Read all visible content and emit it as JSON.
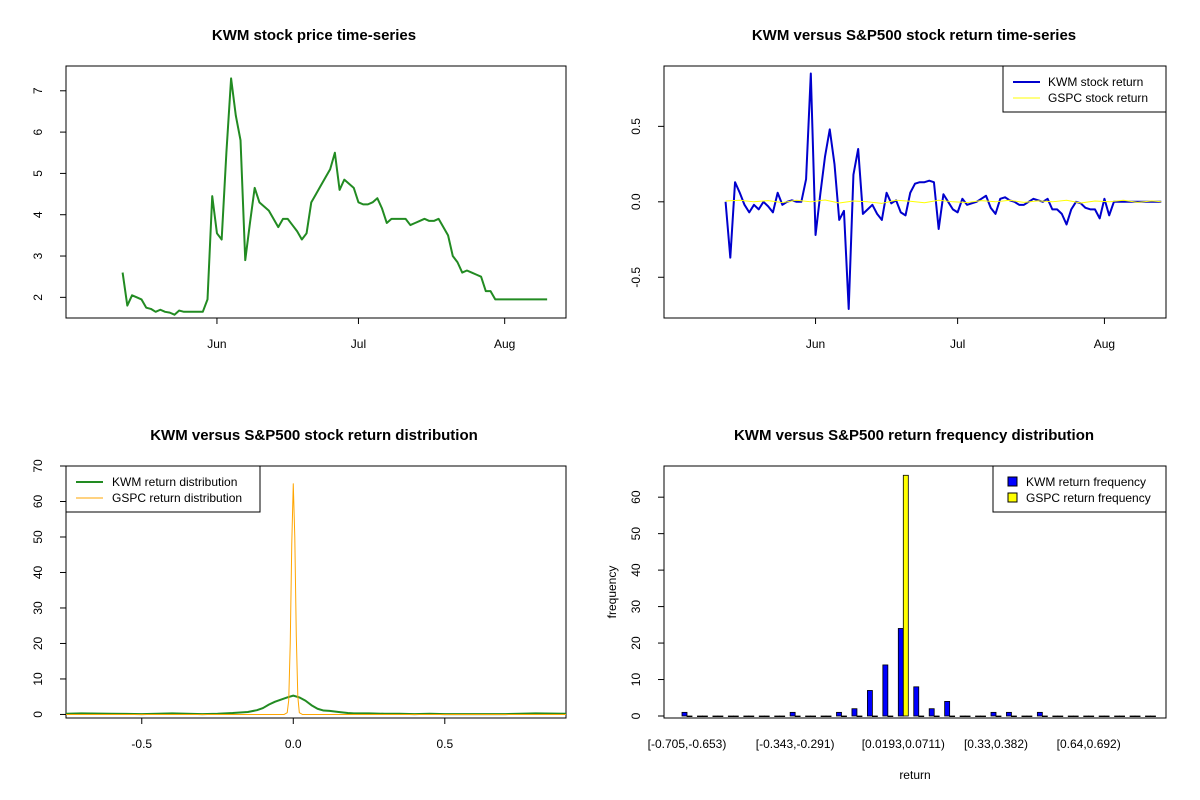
{
  "chart_data": [
    {
      "id": "c1",
      "type": "line",
      "title": "KWM stock price time-series",
      "xlabel": "",
      "ylabel": "",
      "x_tick_labels": [
        "Jun",
        "Jul",
        "Aug"
      ],
      "x_tick_days": [
        32,
        62,
        93
      ],
      "xlim": [
        0,
        106
      ],
      "ylim": [
        1.5,
        7.6
      ],
      "y_ticks": [
        2,
        3,
        4,
        5,
        6,
        7
      ],
      "series": [
        {
          "name": "KWM",
          "color": "#228B22",
          "days": [
            12,
            13,
            14,
            15,
            16,
            17,
            18,
            19,
            20,
            21,
            22,
            23,
            24,
            25,
            26,
            27,
            28,
            29,
            30,
            31,
            32,
            33,
            34,
            35,
            36,
            37,
            38,
            39,
            40,
            41,
            42,
            43,
            44,
            45,
            46,
            47,
            48,
            49,
            50,
            51,
            52,
            53,
            54,
            55,
            56,
            57,
            58,
            59,
            60,
            61,
            62,
            63,
            64,
            65,
            66,
            67,
            68,
            69,
            70,
            71,
            72,
            73,
            74,
            75,
            76,
            77,
            78,
            79,
            80,
            81,
            82,
            83,
            84,
            85,
            86,
            87,
            88,
            89,
            90,
            91,
            92,
            93,
            94,
            95,
            96,
            97,
            98,
            99,
            100,
            101,
            102
          ],
          "values": [
            2.6,
            1.8,
            2.05,
            2.0,
            1.95,
            1.75,
            1.72,
            1.65,
            1.7,
            1.65,
            1.63,
            1.58,
            1.68,
            1.65,
            1.65,
            1.65,
            1.65,
            1.65,
            1.95,
            4.45,
            3.55,
            3.4,
            5.5,
            7.3,
            6.4,
            5.8,
            2.9,
            3.8,
            4.65,
            4.3,
            4.2,
            4.1,
            3.9,
            3.7,
            3.9,
            3.9,
            3.75,
            3.6,
            3.4,
            3.55,
            4.3,
            4.5,
            4.7,
            4.9,
            5.1,
            5.5,
            4.6,
            4.85,
            4.75,
            4.65,
            4.3,
            4.25,
            4.25,
            4.3,
            4.4,
            4.15,
            3.8,
            3.9,
            3.9,
            3.9,
            3.9,
            3.75,
            3.8,
            3.85,
            3.9,
            3.85,
            3.85,
            3.9,
            3.7,
            3.5,
            3.0,
            2.85,
            2.6,
            2.65,
            2.6,
            2.55,
            2.5,
            2.15,
            2.15,
            1.95,
            1.95,
            1.95,
            1.95,
            1.95,
            1.95,
            1.95,
            1.95,
            1.95,
            1.95,
            1.95,
            1.95
          ]
        }
      ]
    },
    {
      "id": "c2",
      "type": "line",
      "title": "KWM versus S&P500 stock return time-series",
      "xlabel": "",
      "ylabel": "",
      "x_tick_labels": [
        "Jun",
        "Jul",
        "Aug"
      ],
      "x_tick_days": [
        32,
        62,
        93
      ],
      "xlim": [
        0,
        106
      ],
      "ylim": [
        -0.77,
        0.9
      ],
      "y_ticks": [
        -0.5,
        0.0,
        0.5
      ],
      "y_tick_labels": [
        "-0.5",
        "0.0",
        "0.5"
      ],
      "legend": [
        "KWM stock return",
        "GSPC stock return"
      ],
      "series": [
        {
          "name": "KWM stock return",
          "color": "#0000CD",
          "days": [
            13,
            14,
            15,
            16,
            17,
            18,
            19,
            20,
            21,
            22,
            23,
            24,
            25,
            26,
            27,
            28,
            29,
            30,
            31,
            32,
            33,
            34,
            35,
            36,
            37,
            38,
            39,
            40,
            41,
            42,
            43,
            44,
            45,
            46,
            47,
            48,
            49,
            50,
            51,
            52,
            53,
            54,
            55,
            56,
            57,
            58,
            59,
            60,
            61,
            62,
            63,
            64,
            65,
            66,
            67,
            68,
            69,
            70,
            71,
            72,
            73,
            74,
            75,
            76,
            77,
            78,
            79,
            80,
            81,
            82,
            83,
            84,
            85,
            86,
            87,
            88,
            89,
            90,
            91,
            92,
            93,
            94,
            95,
            96,
            97,
            98,
            99,
            100,
            101,
            102,
            103,
            104,
            105
          ],
          "values": [
            0.0,
            -0.37,
            0.13,
            0.06,
            -0.02,
            -0.07,
            -0.02,
            -0.05,
            0.0,
            -0.03,
            -0.07,
            0.06,
            -0.02,
            0.0,
            0.01,
            0.0,
            0.0,
            0.15,
            0.85,
            -0.22,
            0.05,
            0.3,
            0.48,
            0.25,
            -0.12,
            -0.06,
            -0.71,
            0.18,
            0.35,
            -0.08,
            -0.05,
            -0.02,
            -0.08,
            -0.12,
            0.06,
            -0.01,
            0.01,
            -0.07,
            -0.09,
            0.06,
            0.12,
            0.13,
            0.13,
            0.14,
            0.13,
            -0.18,
            0.05,
            0.0,
            -0.05,
            -0.07,
            0.02,
            -0.02,
            -0.01,
            0.0,
            0.02,
            0.04,
            -0.04,
            -0.08,
            0.02,
            0.03,
            0.01,
            0.0,
            -0.02,
            -0.02,
            0.0,
            0.02,
            0.01,
            0.0,
            0.02,
            -0.05,
            -0.05,
            -0.08,
            -0.15,
            -0.05,
            0.0,
            -0.01,
            -0.04,
            -0.05,
            -0.05,
            -0.11,
            0.02,
            -0.09,
            0.0,
            0.0,
            0.0,
            0.0,
            0.0,
            0.0,
            0.0,
            0.0,
            0.0,
            0.0,
            0.0
          ]
        },
        {
          "name": "GSPC stock return",
          "color": "#FFFF00",
          "days": [
            13,
            16,
            19,
            22,
            25,
            28,
            31,
            34,
            37,
            40,
            43,
            46,
            49,
            52,
            55,
            58,
            61,
            64,
            67,
            70,
            73,
            76,
            79,
            82,
            85,
            88,
            91,
            94,
            97,
            100,
            103,
            105
          ],
          "values": [
            0.005,
            0.01,
            0.0,
            0.008,
            -0.005,
            0.01,
            0.0,
            0.012,
            -0.008,
            0.005,
            0.0,
            -0.01,
            0.01,
            0.004,
            -0.006,
            0.01,
            0.0,
            -0.005,
            0.008,
            0.0,
            0.01,
            -0.004,
            0.006,
            0.0,
            0.01,
            -0.008,
            0.005,
            0.0,
            0.01,
            -0.004,
            0.006,
            0.0
          ]
        }
      ]
    },
    {
      "id": "c3",
      "type": "line",
      "title": "KWM versus S&P500 stock return distribution",
      "xlabel": "",
      "ylabel": "",
      "xlim": [
        -0.75,
        0.9
      ],
      "ylim": [
        -1,
        70
      ],
      "x_ticks": [
        -0.5,
        0.0,
        0.5
      ],
      "x_tick_labels": [
        "-0.5",
        "0.0",
        "0.5"
      ],
      "y_ticks": [
        0,
        10,
        20,
        30,
        40,
        50,
        60,
        70
      ],
      "legend": [
        "KWM return distribution",
        "GSPC return distribution"
      ],
      "series": [
        {
          "name": "KWM return distribution",
          "color": "#228B22",
          "x": [
            -0.75,
            -0.7,
            -0.6,
            -0.5,
            -0.4,
            -0.35,
            -0.3,
            -0.25,
            -0.2,
            -0.15,
            -0.12,
            -0.1,
            -0.08,
            -0.06,
            -0.04,
            -0.02,
            0.0,
            0.02,
            0.04,
            0.06,
            0.08,
            0.1,
            0.12,
            0.15,
            0.18,
            0.2,
            0.25,
            0.3,
            0.35,
            0.4,
            0.45,
            0.5,
            0.6,
            0.7,
            0.8,
            0.9
          ],
          "values": [
            0.2,
            0.3,
            0.2,
            0.1,
            0.3,
            0.2,
            0.1,
            0.2,
            0.4,
            0.7,
            1.2,
            1.8,
            2.8,
            3.6,
            4.2,
            4.8,
            5.3,
            4.8,
            3.9,
            2.6,
            1.6,
            1.1,
            1.0,
            0.7,
            0.4,
            0.3,
            0.3,
            0.2,
            0.2,
            0.1,
            0.2,
            0.1,
            0.1,
            0.1,
            0.3,
            0.2
          ]
        },
        {
          "name": "GSPC return distribution",
          "color": "#FFA500",
          "x": [
            -0.75,
            -0.03,
            -0.02,
            -0.015,
            -0.01,
            -0.005,
            0.0,
            0.005,
            0.01,
            0.015,
            0.02,
            0.03,
            0.9
          ],
          "values": [
            0,
            0,
            0.5,
            4,
            20,
            48,
            65,
            50,
            22,
            5,
            0.5,
            0,
            0
          ]
        }
      ]
    },
    {
      "id": "c4",
      "type": "bar",
      "title": "KWM versus S&P500 return frequency distribution",
      "xlabel": "return",
      "ylabel": "frequency",
      "ylim": [
        0,
        68
      ],
      "y_ticks": [
        0,
        10,
        20,
        30,
        40,
        50,
        60
      ],
      "x_tick_labels": [
        "[-0.705,-0.653)",
        "[-0.343,-0.291)",
        "[0.0193,0.0711)",
        "[0.33,0.382)",
        "[0.64,0.692)"
      ],
      "x_tick_bin_index": [
        0,
        7,
        14,
        20,
        26
      ],
      "legend": [
        "KWM return frequency",
        "GSPC return frequency"
      ],
      "series": [
        {
          "name": "KWM return frequency",
          "color": "#0000FF",
          "values": [
            1,
            0,
            0,
            0,
            0,
            0,
            0,
            1,
            0,
            0,
            1,
            2,
            7,
            14,
            24,
            8,
            2,
            4,
            0,
            0,
            1,
            1,
            0,
            1,
            0,
            0,
            0,
            0,
            0,
            0,
            0
          ]
        },
        {
          "name": "GSPC return frequency",
          "color": "#FFFF00",
          "values": [
            0,
            0,
            0,
            0,
            0,
            0,
            0,
            0,
            0,
            0,
            0,
            0,
            0,
            0,
            66,
            0,
            0,
            0,
            0,
            0,
            0,
            0,
            0,
            0,
            0,
            0,
            0,
            0,
            0,
            0,
            0
          ]
        }
      ]
    }
  ]
}
